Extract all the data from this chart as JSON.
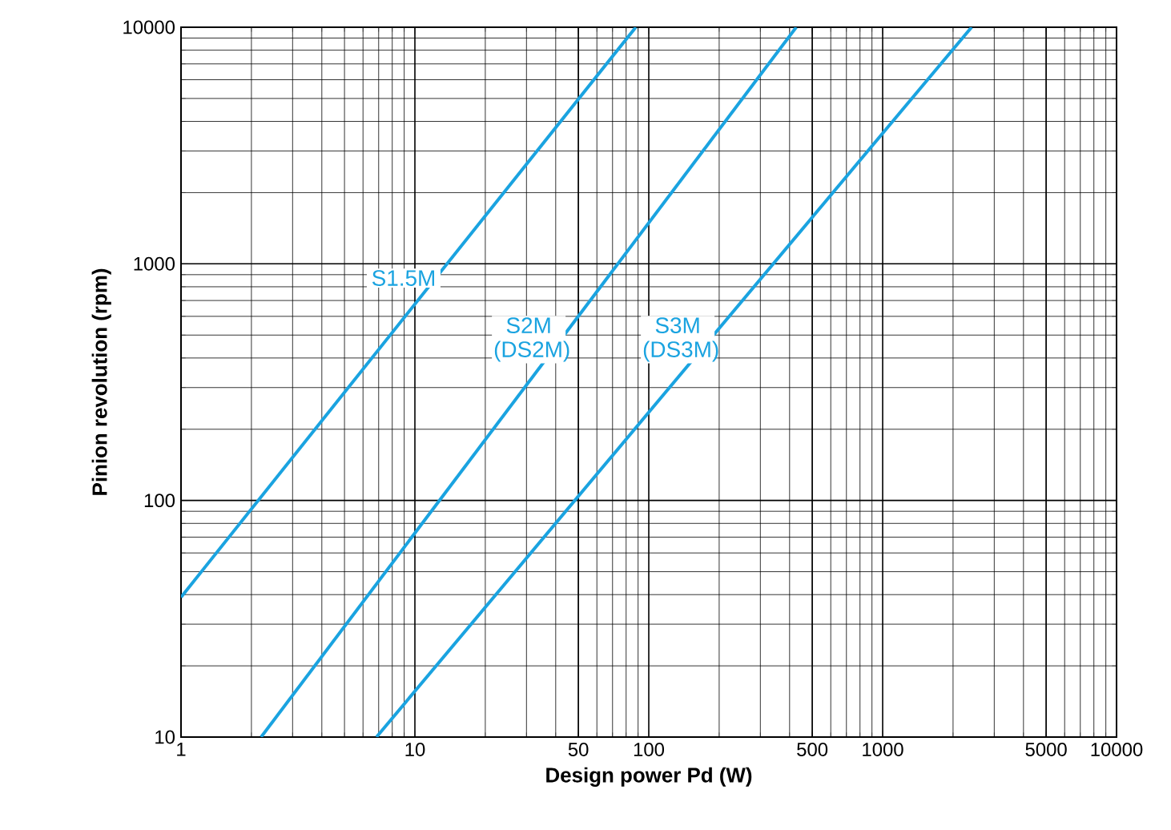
{
  "chart_data": {
    "type": "line",
    "xlabel": "Design power Pd (W)",
    "ylabel": "Pinion revolution (rpm)",
    "log": "xy",
    "grid": true,
    "xlim": [
      1,
      10000
    ],
    "ylim": [
      10,
      10000
    ],
    "xticks": [
      1,
      10,
      50,
      100,
      500,
      1000,
      5000,
      10000
    ],
    "yticks": [
      10,
      100,
      1000,
      10000
    ],
    "marker": "none",
    "line_style": "solid",
    "series": [
      {
        "name": "S1.5M",
        "color": "#1aa3e0",
        "x": [
          1,
          88
        ],
        "values": [
          39,
          10000
        ]
      },
      {
        "name": "S2M (DS2M)",
        "color": "#1aa3e0",
        "x": [
          2.2,
          427
        ],
        "values": [
          10,
          10000
        ]
      },
      {
        "name": "S3M (DS3M)",
        "color": "#1aa3e0",
        "x": [
          6.85,
          2400
        ],
        "values": [
          10,
          10000
        ]
      }
    ]
  }
}
